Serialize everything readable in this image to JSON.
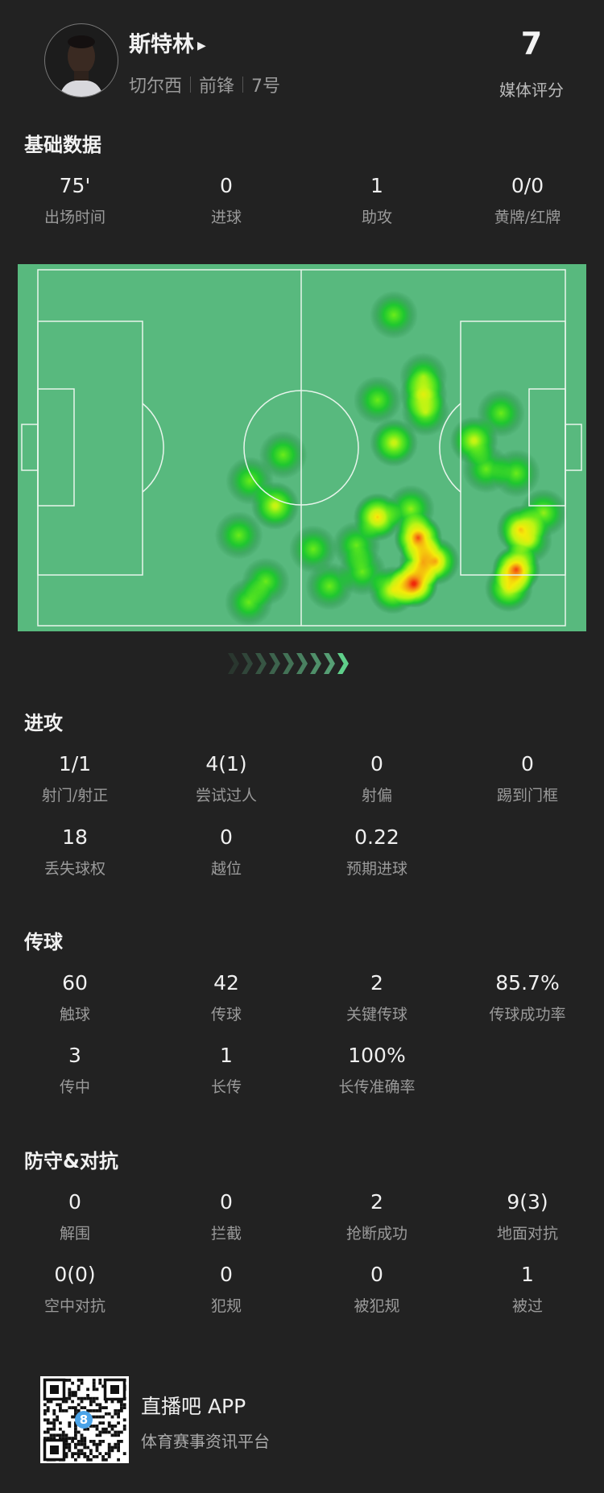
{
  "player": {
    "name": "斯特林",
    "play_icon": "play-triangle-icon",
    "team": "切尔西",
    "position": "前锋",
    "number": "7号",
    "rating": "7",
    "rating_label": "媒体评分"
  },
  "basic": {
    "title": "基础数据",
    "stats": [
      {
        "value": "75'",
        "label": "出场时间"
      },
      {
        "value": "0",
        "label": "进球"
      },
      {
        "value": "1",
        "label": "助攻"
      },
      {
        "value": "0/0",
        "label": "黄牌/红牌"
      }
    ]
  },
  "heatmap": {
    "colors": {
      "pitch": "#58b97e",
      "lines": "#e8f5ec",
      "low": "#1fcf2a",
      "mid": "#f2f20a",
      "high": "#f22a0a"
    },
    "attack_direction": "right",
    "points_pitch_coords": [
      [
        67.5,
        12.7,
        0.35
      ],
      [
        64.4,
        36.6,
        0.35
      ],
      [
        73.1,
        30,
        0.35
      ],
      [
        73.1,
        35,
        0.45
      ],
      [
        73.5,
        40,
        0.4
      ],
      [
        67.5,
        48.6,
        0.5
      ],
      [
        87.8,
        40.3,
        0.35
      ],
      [
        82.7,
        48,
        0.5
      ],
      [
        85,
        56,
        0.35
      ],
      [
        90.7,
        57.2,
        0.35
      ],
      [
        46.5,
        52,
        0.35
      ],
      [
        40.2,
        59.3,
        0.35
      ],
      [
        45,
        66.3,
        0.5
      ],
      [
        38.1,
        74.6,
        0.35
      ],
      [
        43.2,
        87.6,
        0.35
      ],
      [
        40,
        93.4,
        0.35
      ],
      [
        52.2,
        78.5,
        0.35
      ],
      [
        55.3,
        88.9,
        0.35
      ],
      [
        60.4,
        77.4,
        0.35
      ],
      [
        61.5,
        84.8,
        0.35
      ],
      [
        64.4,
        69.5,
        0.65
      ],
      [
        70.7,
        67.2,
        0.4
      ],
      [
        72.1,
        75.3,
        0.85
      ],
      [
        71.3,
        88.2,
        0.95
      ],
      [
        75.4,
        81.9,
        0.6
      ],
      [
        67.3,
        90,
        0.55
      ],
      [
        73,
        82,
        0.6
      ],
      [
        91.5,
        72.9,
        0.6
      ],
      [
        95.9,
        68.3,
        0.4
      ],
      [
        90.7,
        84.2,
        0.85
      ],
      [
        89.3,
        89.4,
        0.55
      ],
      [
        93,
        76,
        0.4
      ]
    ]
  },
  "attack": {
    "title": "进攻",
    "stats": [
      {
        "value": "1/1",
        "label": "射门/射正"
      },
      {
        "value": "4(1)",
        "label": "尝试过人"
      },
      {
        "value": "0",
        "label": "射偏"
      },
      {
        "value": "0",
        "label": "踢到门框"
      },
      {
        "value": "18",
        "label": "丢失球权"
      },
      {
        "value": "0",
        "label": "越位"
      },
      {
        "value": "0.22",
        "label": "预期进球"
      }
    ]
  },
  "passing": {
    "title": "传球",
    "stats": [
      {
        "value": "60",
        "label": "触球"
      },
      {
        "value": "42",
        "label": "传球"
      },
      {
        "value": "2",
        "label": "关键传球"
      },
      {
        "value": "85.7%",
        "label": "传球成功率"
      },
      {
        "value": "3",
        "label": "传中"
      },
      {
        "value": "1",
        "label": "长传"
      },
      {
        "value": "100%",
        "label": "长传准确率"
      }
    ]
  },
  "defense": {
    "title": "防守&对抗",
    "stats": [
      {
        "value": "0",
        "label": "解围"
      },
      {
        "value": "0",
        "label": "拦截"
      },
      {
        "value": "2",
        "label": "抢断成功"
      },
      {
        "value": "9(3)",
        "label": "地面对抗"
      },
      {
        "value": "0(0)",
        "label": "空中对抗"
      },
      {
        "value": "0",
        "label": "犯规"
      },
      {
        "value": "0",
        "label": "被犯规"
      },
      {
        "value": "1",
        "label": "被过"
      }
    ]
  },
  "footer": {
    "app_name": "直播吧 APP",
    "tagline": "体育赛事资讯平台",
    "qr_badge": "8"
  }
}
